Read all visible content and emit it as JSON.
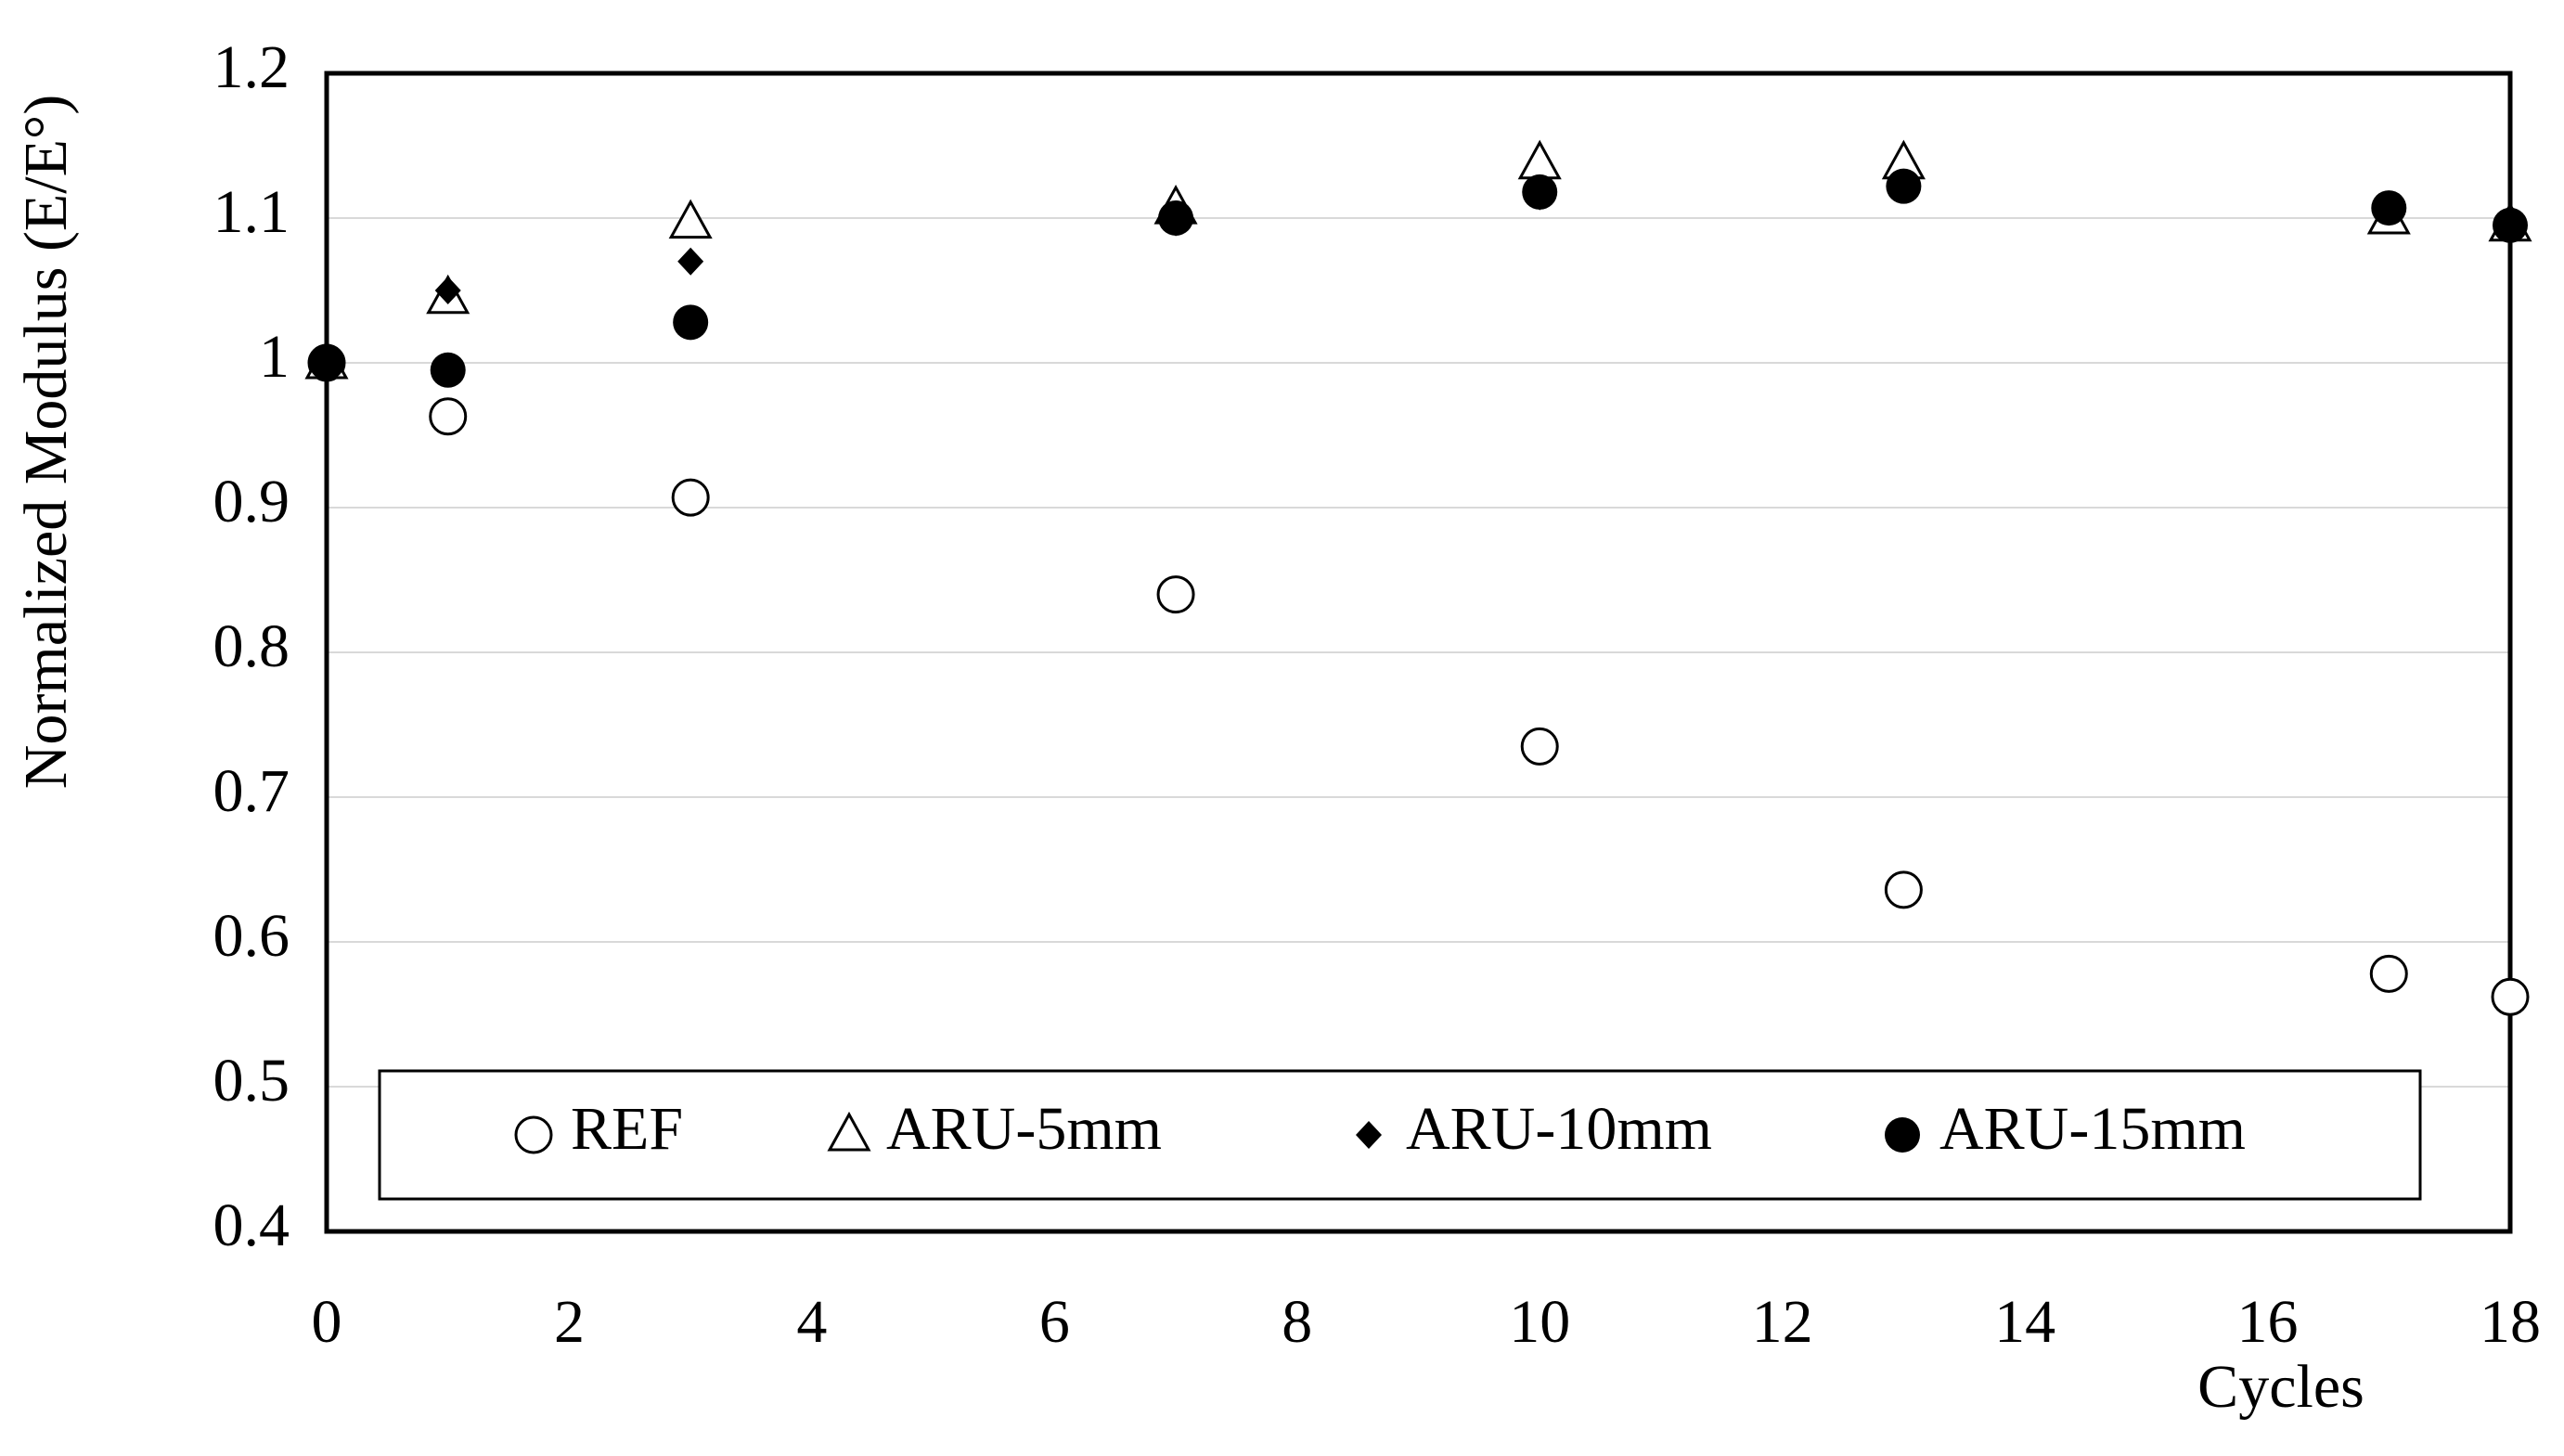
{
  "chart_data": {
    "type": "scatter",
    "x_label": "Cycles",
    "y_label": "Normalized Modulus (E/E°)",
    "xlim": [
      0,
      18
    ],
    "xticks": [
      0,
      2,
      4,
      6,
      8,
      10,
      12,
      14,
      16,
      18
    ],
    "ylim": [
      0.4,
      1.2
    ],
    "yticks": [
      0.4,
      0.5,
      0.6,
      0.7,
      0.8,
      0.9,
      1,
      1.1,
      1.2
    ],
    "grid": true,
    "legend": "bottom",
    "series": [
      {
        "name": "REF",
        "color": "#000000",
        "marker": "open-circle",
        "x": [
          0,
          1,
          3,
          7,
          10,
          13,
          17,
          18
        ],
        "values": [
          1.0,
          0.963,
          0.907,
          0.84,
          0.735,
          0.636,
          0.578,
          0.562
        ]
      },
      {
        "name": "ARU-5mm",
        "color": "#000000",
        "marker": "open-triangle",
        "x": [
          0,
          1,
          3,
          7,
          10,
          13,
          17,
          18
        ],
        "values": [
          1.0,
          1.045,
          1.097,
          1.107,
          1.138,
          1.138,
          1.1,
          1.095
        ]
      },
      {
        "name": "ARU-10mm",
        "color": "#000000",
        "marker": "diamond",
        "x": [
          0,
          1,
          3,
          7,
          10,
          13,
          17,
          18
        ],
        "values": [
          1.0,
          1.05,
          1.07,
          1.097,
          1.115,
          1.12,
          1.105,
          1.095
        ]
      },
      {
        "name": "ARU-15mm",
        "color": "#000000",
        "marker": "circle",
        "x": [
          0,
          1,
          3,
          7,
          10,
          13,
          17,
          18
        ],
        "values": [
          1.0,
          0.995,
          1.028,
          1.1,
          1.118,
          1.122,
          1.107,
          1.095
        ]
      }
    ]
  }
}
